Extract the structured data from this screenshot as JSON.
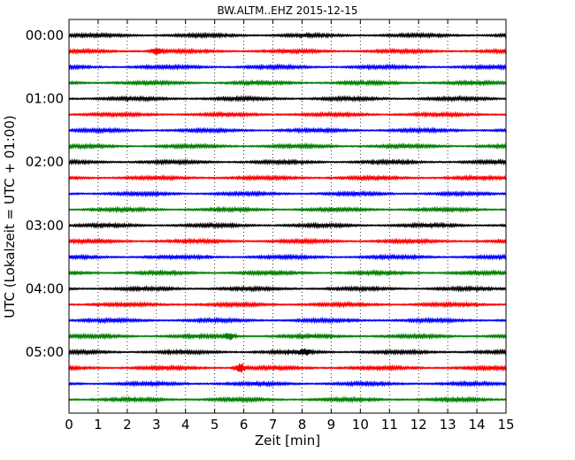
{
  "chart_data": {
    "type": "line",
    "title": "BW.ALTM..EHZ 2015-12-15",
    "xlabel": "Zeit  [min]",
    "ylabel": "UTC (Lokalzeit = UTC + 01:00)",
    "xlim": [
      0,
      15
    ],
    "x_ticks": [
      "0",
      "1",
      "2",
      "3",
      "4",
      "5",
      "6",
      "7",
      "8",
      "9",
      "10",
      "11",
      "12",
      "13",
      "14",
      "15"
    ],
    "y_tick_labels": [
      "00:00",
      "01:00",
      "02:00",
      "03:00",
      "04:00",
      "05:00"
    ],
    "grid": "vertical dotted lines at each minute",
    "trace_interval_min": 15,
    "colors": [
      "#000000",
      "#ff0000",
      "#0000ff",
      "#008000"
    ],
    "traces": [
      {
        "start": "00:00",
        "color": "#000000"
      },
      {
        "start": "00:15",
        "color": "#ff0000",
        "event_min": 3.0,
        "event_amp": 1.8
      },
      {
        "start": "00:30",
        "color": "#0000ff"
      },
      {
        "start": "00:45",
        "color": "#008000"
      },
      {
        "start": "01:00",
        "color": "#000000"
      },
      {
        "start": "01:15",
        "color": "#ff0000"
      },
      {
        "start": "01:30",
        "color": "#0000ff"
      },
      {
        "start": "01:45",
        "color": "#008000"
      },
      {
        "start": "02:00",
        "color": "#000000"
      },
      {
        "start": "02:15",
        "color": "#ff0000"
      },
      {
        "start": "02:30",
        "color": "#0000ff"
      },
      {
        "start": "02:45",
        "color": "#008000"
      },
      {
        "start": "03:00",
        "color": "#000000"
      },
      {
        "start": "03:15",
        "color": "#ff0000"
      },
      {
        "start": "03:30",
        "color": "#0000ff"
      },
      {
        "start": "03:45",
        "color": "#008000"
      },
      {
        "start": "04:00",
        "color": "#000000"
      },
      {
        "start": "04:15",
        "color": "#ff0000"
      },
      {
        "start": "04:30",
        "color": "#0000ff"
      },
      {
        "start": "04:45",
        "color": "#008000",
        "event_min": 5.5,
        "event_amp": 1.5
      },
      {
        "start": "05:00",
        "color": "#000000",
        "event_min": 8.1,
        "event_amp": 1.3
      },
      {
        "start": "05:15",
        "color": "#ff0000",
        "event_min": 5.9,
        "event_amp": 2.2
      },
      {
        "start": "05:30",
        "color": "#0000ff"
      },
      {
        "start": "05:45",
        "color": "#008000"
      }
    ]
  }
}
